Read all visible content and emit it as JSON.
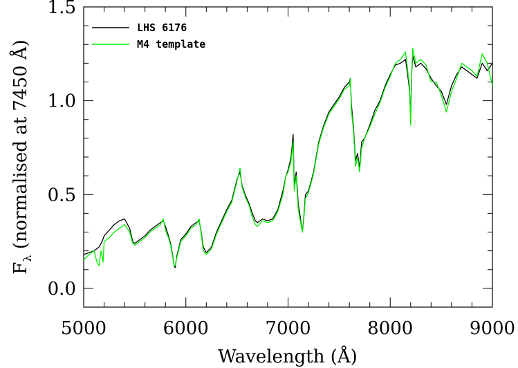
{
  "chart_data": {
    "type": "line",
    "xlabel": "Wavelength (Å)",
    "ylabel": "F",
    "ylabel_subscript": "λ",
    "ylabel_rest": " (normalised at 7450 Å)",
    "xlim": [
      5000,
      9000
    ],
    "ylim": [
      -0.1,
      1.5
    ],
    "xticks": [
      5000,
      6000,
      7000,
      8000,
      9000
    ],
    "xtick_labels": [
      "5000",
      "6000",
      "7000",
      "8000",
      "9000"
    ],
    "yticks": [
      0.0,
      0.5,
      1.0,
      1.5
    ],
    "ytick_labels": [
      "0.0",
      "0.5",
      "1.0",
      "1.5"
    ],
    "grid": false,
    "legend_position": "top-left",
    "series": [
      {
        "name": "LHS 6176",
        "color": "#000000",
        "x": [
          5000,
          5050,
          5100,
          5150,
          5180,
          5200,
          5250,
          5300,
          5350,
          5400,
          5450,
          5480,
          5500,
          5550,
          5600,
          5650,
          5700,
          5750,
          5780,
          5800,
          5830,
          5850,
          5870,
          5885,
          5895,
          5910,
          5950,
          6000,
          6050,
          6100,
          6130,
          6150,
          6170,
          6200,
          6250,
          6300,
          6350,
          6400,
          6450,
          6500,
          6530,
          6550,
          6580,
          6620,
          6650,
          6680,
          6700,
          6750,
          6800,
          6850,
          6900,
          6950,
          6980,
          7000,
          7030,
          7050,
          7060,
          7080,
          7100,
          7120,
          7140,
          7150,
          7170,
          7200,
          7250,
          7300,
          7350,
          7400,
          7450,
          7500,
          7550,
          7600,
          7610,
          7620,
          7640,
          7660,
          7680,
          7700,
          7720,
          7750,
          7800,
          7850,
          7900,
          7950,
          8000,
          8050,
          8100,
          8150,
          8180,
          8190,
          8200,
          8210,
          8220,
          8250,
          8300,
          8350,
          8400,
          8450,
          8500,
          8550,
          8600,
          8650,
          8700,
          8750,
          8800,
          8850,
          8900,
          8950,
          9000
        ],
        "y": [
          0.18,
          0.19,
          0.2,
          0.22,
          0.25,
          0.28,
          0.31,
          0.34,
          0.36,
          0.37,
          0.32,
          0.25,
          0.24,
          0.26,
          0.28,
          0.31,
          0.33,
          0.35,
          0.36,
          0.33,
          0.28,
          0.24,
          0.18,
          0.12,
          0.11,
          0.17,
          0.26,
          0.29,
          0.33,
          0.35,
          0.36,
          0.3,
          0.22,
          0.19,
          0.22,
          0.3,
          0.36,
          0.42,
          0.47,
          0.58,
          0.62,
          0.55,
          0.5,
          0.45,
          0.4,
          0.36,
          0.35,
          0.37,
          0.36,
          0.37,
          0.42,
          0.52,
          0.6,
          0.63,
          0.7,
          0.82,
          0.55,
          0.62,
          0.45,
          0.38,
          0.3,
          0.35,
          0.5,
          0.52,
          0.62,
          0.78,
          0.87,
          0.94,
          0.98,
          1.02,
          1.07,
          1.1,
          1.12,
          0.98,
          0.86,
          0.68,
          0.72,
          0.64,
          0.78,
          0.8,
          0.87,
          0.95,
          1.0,
          1.08,
          1.14,
          1.19,
          1.2,
          1.22,
          1.1,
          1.05,
          0.9,
          1.15,
          1.24,
          1.18,
          1.2,
          1.17,
          1.12,
          1.08,
          1.05,
          0.98,
          1.08,
          1.14,
          1.18,
          1.16,
          1.14,
          1.12,
          1.2,
          1.16,
          1.2
        ]
      },
      {
        "name": "M4 template",
        "color": "#00ee00",
        "x": [
          5000,
          5050,
          5100,
          5130,
          5150,
          5170,
          5190,
          5200,
          5250,
          5300,
          5350,
          5400,
          5450,
          5480,
          5500,
          5550,
          5600,
          5650,
          5700,
          5750,
          5780,
          5800,
          5830,
          5850,
          5870,
          5885,
          5895,
          5910,
          5950,
          6000,
          6050,
          6100,
          6130,
          6150,
          6170,
          6200,
          6250,
          6300,
          6350,
          6400,
          6450,
          6500,
          6530,
          6550,
          6580,
          6620,
          6650,
          6680,
          6700,
          6750,
          6800,
          6850,
          6900,
          6950,
          6980,
          7000,
          7030,
          7050,
          7060,
          7080,
          7100,
          7120,
          7140,
          7150,
          7170,
          7200,
          7250,
          7300,
          7350,
          7400,
          7450,
          7500,
          7550,
          7600,
          7610,
          7620,
          7640,
          7660,
          7680,
          7700,
          7720,
          7750,
          7800,
          7850,
          7900,
          7950,
          8000,
          8050,
          8100,
          8150,
          8180,
          8190,
          8200,
          8210,
          8220,
          8250,
          8300,
          8350,
          8400,
          8450,
          8500,
          8550,
          8600,
          8650,
          8700,
          8750,
          8800,
          8850,
          8900,
          8950,
          9000
        ],
        "y": [
          0.15,
          0.18,
          0.2,
          0.14,
          0.12,
          0.2,
          0.14,
          0.25,
          0.27,
          0.3,
          0.32,
          0.34,
          0.3,
          0.24,
          0.23,
          0.25,
          0.27,
          0.3,
          0.32,
          0.34,
          0.37,
          0.31,
          0.27,
          0.23,
          0.17,
          0.12,
          0.12,
          0.16,
          0.25,
          0.28,
          0.32,
          0.34,
          0.37,
          0.29,
          0.2,
          0.18,
          0.21,
          0.29,
          0.35,
          0.41,
          0.46,
          0.57,
          0.64,
          0.54,
          0.49,
          0.44,
          0.38,
          0.34,
          0.33,
          0.36,
          0.35,
          0.36,
          0.41,
          0.5,
          0.6,
          0.62,
          0.68,
          0.78,
          0.52,
          0.6,
          0.42,
          0.36,
          0.3,
          0.34,
          0.48,
          0.51,
          0.61,
          0.77,
          0.86,
          0.93,
          0.97,
          1.01,
          1.06,
          1.08,
          1.12,
          0.95,
          0.84,
          0.65,
          0.7,
          0.62,
          0.75,
          0.8,
          0.86,
          0.93,
          0.99,
          1.07,
          1.13,
          1.2,
          1.22,
          1.26,
          1.12,
          1.07,
          0.87,
          1.15,
          1.28,
          1.2,
          1.22,
          1.19,
          1.1,
          1.1,
          1.03,
          0.94,
          1.05,
          1.12,
          1.2,
          1.18,
          1.16,
          1.13,
          1.25,
          1.2,
          1.08
        ]
      }
    ]
  }
}
